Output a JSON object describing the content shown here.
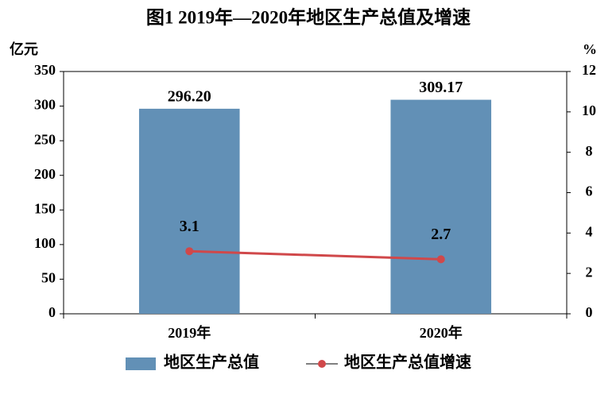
{
  "chart_data": {
    "type": "bar",
    "title": "图1  2019年—2020年地区生产总值及增速",
    "y_label": "亿元",
    "y2_label": "%",
    "categories": [
      "2019年",
      "2020年"
    ],
    "series": [
      {
        "name": "地区生产总值",
        "type": "bar",
        "color": "#6290b6",
        "values": [
          296.2,
          309.17
        ],
        "value_labels": [
          "296.20",
          "309.17"
        ]
      },
      {
        "name": "地区生产总值增速",
        "type": "line",
        "axis": "y2",
        "color": "#d0484a",
        "values": [
          3.1,
          2.7
        ]
      }
    ],
    "ylim": [
      0,
      350
    ],
    "yticks": [
      0,
      50,
      100,
      150,
      200,
      250,
      300,
      350
    ],
    "y2lim": [
      0,
      12
    ],
    "y2ticks": [
      0,
      2,
      4,
      6,
      8,
      10,
      12
    ],
    "grid": false
  }
}
